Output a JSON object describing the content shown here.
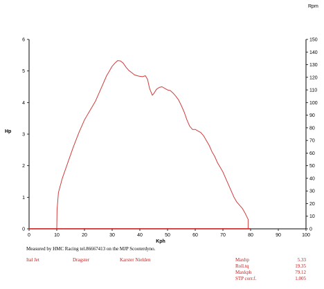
{
  "chart_data": {
    "type": "line",
    "xlabel": "Kph",
    "ylabel_left": "Hp",
    "ylabel_right": "Rpm",
    "xlim": [
      0,
      100
    ],
    "ylim_left": [
      0,
      6
    ],
    "ylim_right": [
      0,
      150
    ],
    "x_ticks": [
      0,
      10,
      20,
      30,
      40,
      50,
      60,
      70,
      80,
      90,
      100
    ],
    "y_left_ticks": [
      0,
      1,
      2,
      3,
      4,
      5,
      6
    ],
    "y_right_ticks": [
      0,
      10,
      20,
      30,
      40,
      50,
      60,
      70,
      80,
      90,
      100,
      110,
      120,
      130,
      140,
      150
    ],
    "grid": false,
    "series": [
      {
        "color": "#d23a3a",
        "x": [
          10,
          10.1,
          10.6,
          12,
          14,
          16,
          18,
          20,
          22,
          24,
          26,
          28,
          29,
          30,
          31,
          32,
          33,
          34,
          35,
          36,
          37,
          38,
          39,
          40,
          41,
          42,
          42.8,
          43.5,
          44.5,
          45,
          46,
          47,
          48,
          49,
          50,
          51,
          52,
          53,
          54,
          55,
          56,
          57,
          58,
          59,
          60,
          61,
          62,
          63,
          64,
          65,
          66,
          67,
          68,
          69,
          70,
          71,
          72,
          73,
          74,
          75,
          76,
          77,
          78,
          79.1,
          79.1
        ],
        "y": [
          0,
          0.6,
          1.15,
          1.6,
          2.1,
          2.6,
          3.05,
          3.45,
          3.75,
          4.05,
          4.45,
          4.85,
          5.0,
          5.15,
          5.25,
          5.33,
          5.32,
          5.25,
          5.12,
          5.02,
          4.95,
          4.88,
          4.85,
          4.83,
          4.82,
          4.85,
          4.73,
          4.45,
          4.23,
          4.28,
          4.42,
          4.48,
          4.5,
          4.45,
          4.4,
          4.38,
          4.3,
          4.2,
          4.08,
          3.9,
          3.7,
          3.45,
          3.25,
          3.15,
          3.15,
          3.1,
          3.05,
          2.95,
          2.8,
          2.65,
          2.45,
          2.3,
          2.1,
          1.95,
          1.8,
          1.6,
          1.4,
          1.2,
          1.0,
          0.85,
          0.75,
          0.65,
          0.5,
          0.3,
          0
        ]
      }
    ]
  },
  "footer": {
    "measured": "Measured by HMC Racing tel.86667413 on the MJP Scooterdyno.",
    "jet": "Ital Jet",
    "type": "Dragster",
    "owner": "Karster Nielden",
    "stats": [
      {
        "label": "Maxhp",
        "value": "5.33"
      },
      {
        "label": "Roll.tq",
        "value": "19.35"
      },
      {
        "label": "Maxkph",
        "value": "79.12"
      },
      {
        "label": "STP corr.f.",
        "value": "1.005"
      }
    ]
  }
}
